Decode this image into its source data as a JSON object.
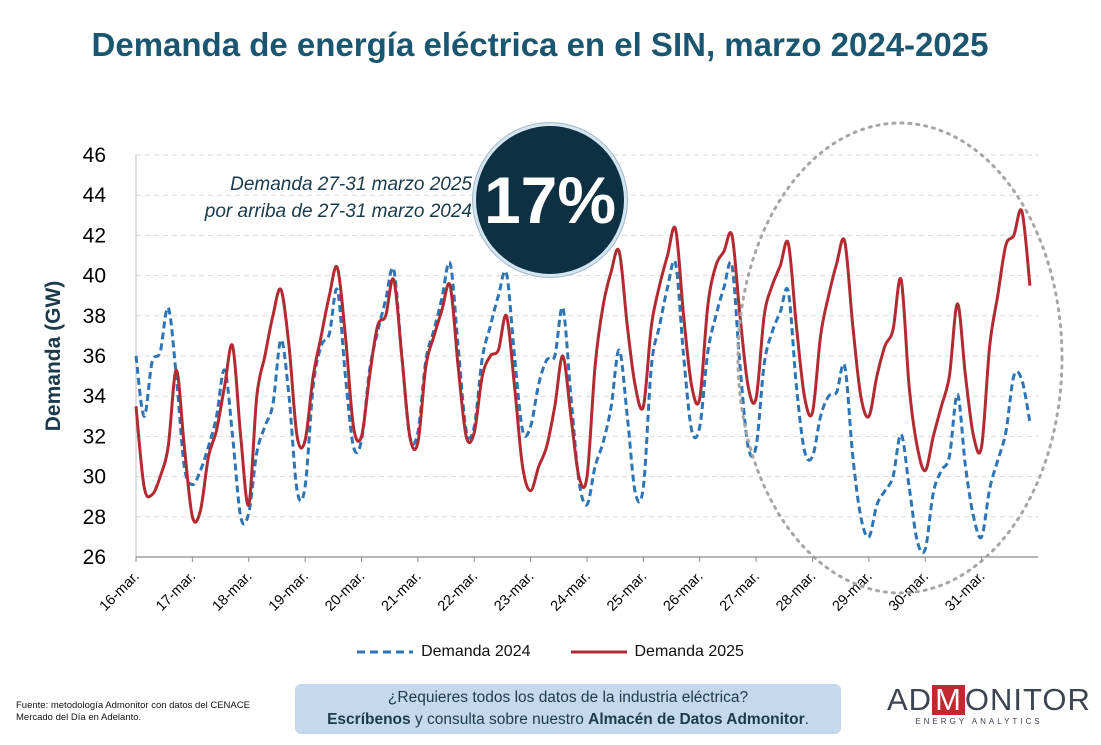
{
  "title": "Demanda de energía eléctrica en el SIN, marzo 2024-2025",
  "annotation": {
    "line1": "Demanda 27-31 marzo 2025",
    "line2": "por arriba de 27-31 marzo 2024",
    "badge": "17%"
  },
  "source": {
    "line1": "Fuente: metodología Admonitor con datos del CENACE",
    "line2": "Mercado del Día en Adelanto."
  },
  "cta": {
    "line1": "¿Requieres todos los datos de la industria eléctrica?",
    "line2_strong": "Escríbenos",
    "line2_mid": " y consulta sobre nuestro ",
    "line2_strong2": "Almacén de Datos Admonitor",
    "line2_end": "."
  },
  "logo": {
    "left": "AD",
    "mid": "M",
    "right": "ONITOR",
    "sub": "ENERGY ANALYTICS"
  },
  "chart_data": {
    "type": "line",
    "ylabel": "Demanda (GW)",
    "ylim": [
      26,
      46
    ],
    "yticks": [
      26,
      28,
      30,
      32,
      34,
      36,
      38,
      40,
      42,
      44,
      46
    ],
    "categories": [
      "16-mar.",
      "17-mar.",
      "18-mar.",
      "19-mar.",
      "20-mar.",
      "21-mar.",
      "22-mar.",
      "23-mar.",
      "24-mar.",
      "25-mar.",
      "26-mar.",
      "27-mar.",
      "28-mar.",
      "29-mar.",
      "30-mar.",
      "31-mar."
    ],
    "grid": true,
    "legend_position": "bottom",
    "series": [
      {
        "name": "Demanda 2024",
        "color": "#2e75b6",
        "style": "dashed",
        "days": [
          [
            36.0,
            33.0,
            35.7,
            36.2,
            38.4,
            35.0,
            30.5
          ],
          [
            29.6,
            30.3,
            31.5,
            33.0,
            35.3,
            32.0,
            28.0
          ],
          [
            28.2,
            31.2,
            32.5,
            33.6,
            36.8,
            34.0,
            29.3
          ],
          [
            29.5,
            34.5,
            36.5,
            37.1,
            39.3,
            35.0,
            31.5
          ],
          [
            31.8,
            35.3,
            37.2,
            38.8,
            40.3,
            36.0,
            32.0
          ],
          [
            32.2,
            35.8,
            37.3,
            38.9,
            40.6,
            36.5,
            32.3
          ],
          [
            32.5,
            35.9,
            37.5,
            39.0,
            40.1,
            36.0,
            32.3
          ],
          [
            32.5,
            34.6,
            35.8,
            36.0,
            38.4,
            34.0,
            29.8
          ],
          [
            28.6,
            30.5,
            31.7,
            33.5,
            36.3,
            33.0,
            29.2
          ],
          [
            29.5,
            35.5,
            37.5,
            39.4,
            40.6,
            36.0,
            32.3
          ],
          [
            32.5,
            36.2,
            38.0,
            39.4,
            40.5,
            35.5,
            31.5
          ],
          [
            31.5,
            35.6,
            37.2,
            38.2,
            39.2,
            34.5,
            31.3
          ],
          [
            31.0,
            33.0,
            34.0,
            34.2,
            35.5,
            31.0,
            28.0
          ],
          [
            27.0,
            28.6,
            29.3,
            30.0,
            32.1,
            29.5,
            26.8
          ],
          [
            26.4,
            29.2,
            30.3,
            31.0,
            34.1,
            30.5,
            28.0
          ],
          [
            27.0,
            29.4,
            30.8,
            32.2,
            35.0,
            34.8,
            32.7
          ]
        ]
      },
      {
        "name": "Demanda 2025",
        "color": "#b22a32",
        "style": "solid",
        "days": [
          [
            33.5,
            29.5,
            29.1,
            30.0,
            31.5,
            35.3,
            31.5
          ],
          [
            28.0,
            28.3,
            31.0,
            32.3,
            34.5,
            36.5,
            32.0
          ],
          [
            28.6,
            34.0,
            36.0,
            38.0,
            39.3,
            36.5,
            32.0
          ],
          [
            31.8,
            35.0,
            37.0,
            39.0,
            40.4,
            37.0,
            32.5
          ],
          [
            32.0,
            35.0,
            37.5,
            38.0,
            39.8,
            36.0,
            32.0
          ],
          [
            31.7,
            35.5,
            37.0,
            38.3,
            39.5,
            35.5,
            32.0
          ],
          [
            32.2,
            35.0,
            36.0,
            36.3,
            38.0,
            34.5,
            30.5
          ],
          [
            29.3,
            30.5,
            31.5,
            33.5,
            36.0,
            33.0,
            30.0
          ],
          [
            30.0,
            35.5,
            38.5,
            40.2,
            41.2,
            37.5,
            34.5
          ],
          [
            33.5,
            37.5,
            39.5,
            41.0,
            42.3,
            38.0,
            34.5
          ],
          [
            33.9,
            38.5,
            40.5,
            41.2,
            42.0,
            38.0,
            34.5
          ],
          [
            33.9,
            38.0,
            39.5,
            40.5,
            41.6,
            37.5,
            34.0
          ],
          [
            33.2,
            37.0,
            39.0,
            40.6,
            41.7,
            37.5,
            34.0
          ],
          [
            33.0,
            35.0,
            36.5,
            37.3,
            39.8,
            34.5,
            31.5
          ],
          [
            30.3,
            32.0,
            33.5,
            35.0,
            38.6,
            35.0,
            32.0
          ],
          [
            31.5,
            36.5,
            39.0,
            41.5,
            42.0,
            43.2,
            39.5
          ]
        ]
      }
    ]
  }
}
